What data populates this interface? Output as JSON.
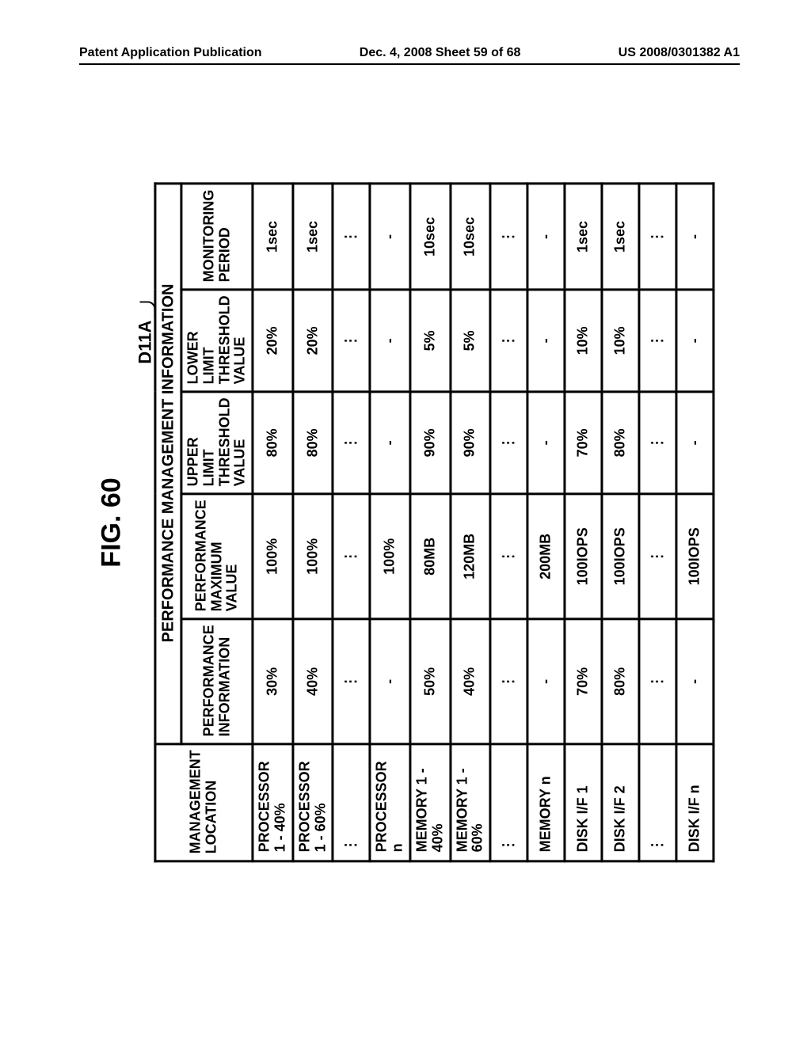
{
  "header": {
    "left": "Patent Application Publication",
    "center": "Dec. 4, 2008  Sheet 59 of 68",
    "right": "US 2008/0301382 A1"
  },
  "figure": {
    "title": "FIG. 60",
    "ref_label": "D11A",
    "table": {
      "group_header": "PERFORMANCE MANAGEMENT INFORMATION",
      "columns": [
        "MANAGEMENT LOCATION",
        "PERFORMANCE INFORMATION",
        "PERFORMANCE MAXIMUM VALUE",
        "UPPER LIMIT THRESHOLD VALUE",
        "LOWER LIMIT THRESHOLD VALUE",
        "MONITORING PERIOD"
      ],
      "rows": [
        [
          "PROCESSOR 1 - 40%",
          "30%",
          "100%",
          "80%",
          "20%",
          "1sec"
        ],
        [
          "PROCESSOR 1 - 60%",
          "40%",
          "100%",
          "80%",
          "20%",
          "1sec"
        ],
        [
          "⋮",
          "⋮",
          "⋮",
          "⋮",
          "⋮",
          "⋮"
        ],
        [
          "PROCESSOR n",
          "-",
          "100%",
          "-",
          "-",
          "-"
        ],
        [
          "MEMORY 1 - 40%",
          "50%",
          "80MB",
          "90%",
          "5%",
          "10sec"
        ],
        [
          "MEMORY 1 - 60%",
          "40%",
          "120MB",
          "90%",
          "5%",
          "10sec"
        ],
        [
          "⋮",
          "⋮",
          "⋮",
          "⋮",
          "⋮",
          "⋮"
        ],
        [
          "MEMORY n",
          "-",
          "200MB",
          "-",
          "-",
          "-"
        ],
        [
          "DISK I/F 1",
          "70%",
          "100IOPS",
          "70%",
          "10%",
          "1sec"
        ],
        [
          "DISK I/F 2",
          "80%",
          "100IOPS",
          "80%",
          "10%",
          "1sec"
        ],
        [
          "⋮",
          "⋮",
          "⋮",
          "⋮",
          "⋮",
          "⋮"
        ],
        [
          "DISK I/F n",
          "-",
          "100IOPS",
          "-",
          "-",
          "-"
        ]
      ]
    }
  }
}
